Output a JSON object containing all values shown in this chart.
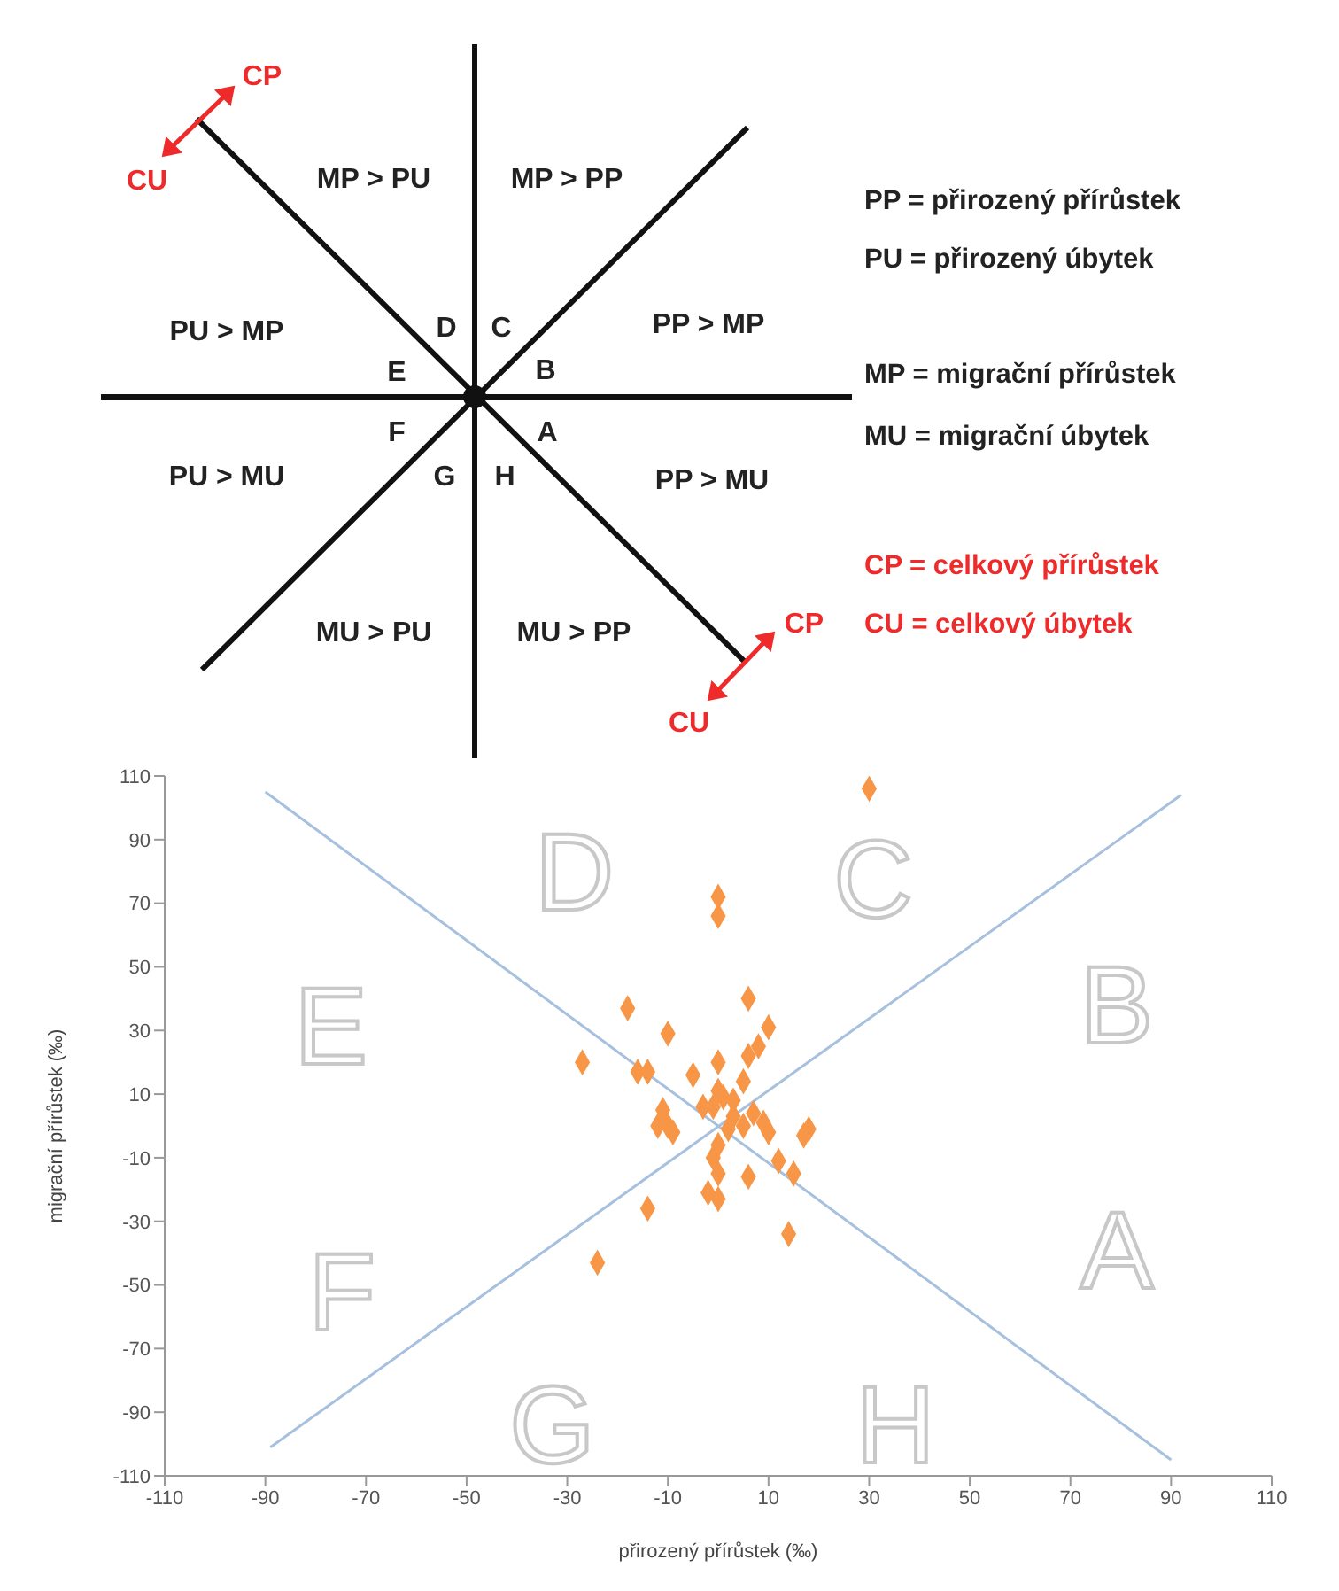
{
  "chart_data": {
    "type": "scatter",
    "xlabel": "přirozený přírůstek (‰)",
    "ylabel": "migrační přírůstek (‰)",
    "xlim": [
      -110,
      110
    ],
    "xticks": [
      -110,
      -90,
      -70,
      -50,
      -30,
      -10,
      10,
      30,
      50,
      70,
      90,
      110
    ],
    "ylim": [
      -110,
      110
    ],
    "yticks": [
      -110,
      -90,
      -70,
      -50,
      -30,
      -10,
      10,
      30,
      50,
      70,
      90,
      110
    ],
    "series": [
      {
        "marker": "diamond",
        "color": "#f79646",
        "x": [
          30,
          0,
          0,
          6,
          -18,
          -10,
          10,
          -27,
          -16,
          -14,
          -5,
          0,
          8,
          6,
          5,
          0,
          1,
          -1,
          -3,
          -11,
          -10,
          -9,
          3,
          7,
          9,
          10,
          12,
          15,
          18,
          17,
          0,
          -1,
          0,
          6,
          -2,
          0,
          -14,
          14,
          -24,
          2,
          5,
          3,
          -12
        ],
        "values": [
          106,
          72,
          66,
          40,
          37,
          29,
          31,
          20,
          17,
          17,
          16,
          20,
          25,
          22,
          14,
          11,
          9,
          6,
          6,
          5,
          0,
          -2,
          3,
          4,
          1,
          -2,
          -11,
          -15,
          -1,
          -3,
          -6,
          -10,
          -15,
          -16,
          -21,
          -23,
          -26,
          -34,
          -43,
          -1,
          0,
          8,
          0
        ]
      },
      {
        "type": "line",
        "marker": "none",
        "color": "#a7c0de",
        "x": [
          -90,
          90
        ],
        "values": [
          105,
          -105
        ]
      },
      {
        "type": "line",
        "marker": "none",
        "color": "#a7c0de",
        "x": [
          -89,
          92
        ],
        "values": [
          -101,
          104
        ]
      }
    ],
    "annotations": [
      "MP > PU",
      "MP > PP",
      "PU > MP",
      "PP > MP",
      "PU > MU",
      "PP > MU",
      "MU > PU",
      "MU > PP",
      "D",
      "C",
      "E",
      "B",
      "F",
      "A",
      "G",
      "H",
      "CP",
      "CU",
      "CP",
      "CU",
      "PP = přirozený přírůstek",
      "PU = přirozený úbytek",
      "MP = migrační přírůstek",
      "MU = migrační úbytek",
      "CP = celkový přírůstek",
      "CU = celkový úbytek",
      "A",
      "B",
      "C",
      "D",
      "E",
      "F",
      "G",
      "H"
    ]
  }
}
